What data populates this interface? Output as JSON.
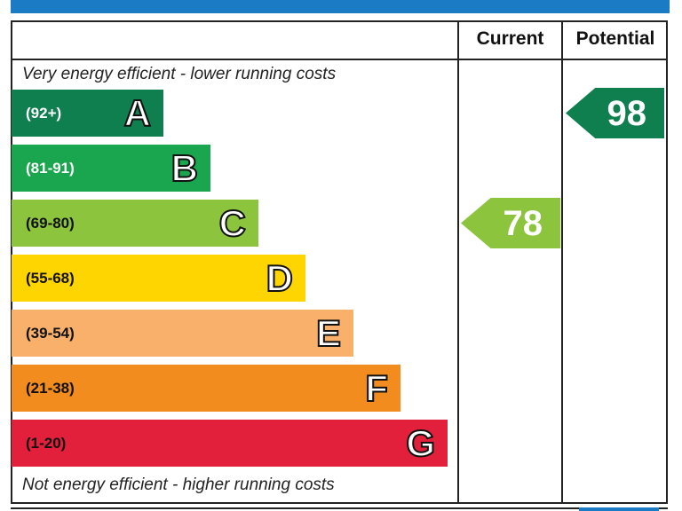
{
  "colors": {
    "header_bar": "#1c7bc5",
    "A": "#0f7f4f",
    "B": "#1aa54f",
    "C": "#8cc43e",
    "D": "#ffd500",
    "E": "#f9b06b",
    "F": "#f28c1e",
    "G": "#e2203b"
  },
  "chart_data": {
    "type": "bar",
    "columns": [
      "Current",
      "Potential"
    ],
    "top_note": "Very energy efficient - lower running costs",
    "bottom_note": "Not energy efficient - higher running costs",
    "bands": [
      {
        "letter": "A",
        "range": "(92+)",
        "min": 92,
        "max": 100,
        "color": "#0f7f4f",
        "text_color": "#ffffff"
      },
      {
        "letter": "B",
        "range": "(81-91)",
        "min": 81,
        "max": 91,
        "color": "#1aa54f",
        "text_color": "#ffffff"
      },
      {
        "letter": "C",
        "range": "(69-80)",
        "min": 69,
        "max": 80,
        "color": "#8cc43e",
        "text_color": "#111111"
      },
      {
        "letter": "D",
        "range": "(55-68)",
        "min": 55,
        "max": 68,
        "color": "#ffd500",
        "text_color": "#111111"
      },
      {
        "letter": "E",
        "range": "(39-54)",
        "min": 39,
        "max": 54,
        "color": "#f9b06b",
        "text_color": "#111111"
      },
      {
        "letter": "F",
        "range": "(21-38)",
        "min": 21,
        "max": 38,
        "color": "#f28c1e",
        "text_color": "#111111"
      },
      {
        "letter": "G",
        "range": "(1-20)",
        "min": 1,
        "max": 20,
        "color": "#e2203b",
        "text_color": "#111111"
      }
    ],
    "ratings": {
      "current": {
        "value": 78,
        "band": "C",
        "color": "#8cc43e"
      },
      "potential": {
        "value": 98,
        "band": "A",
        "color": "#0f7f4f"
      }
    }
  }
}
